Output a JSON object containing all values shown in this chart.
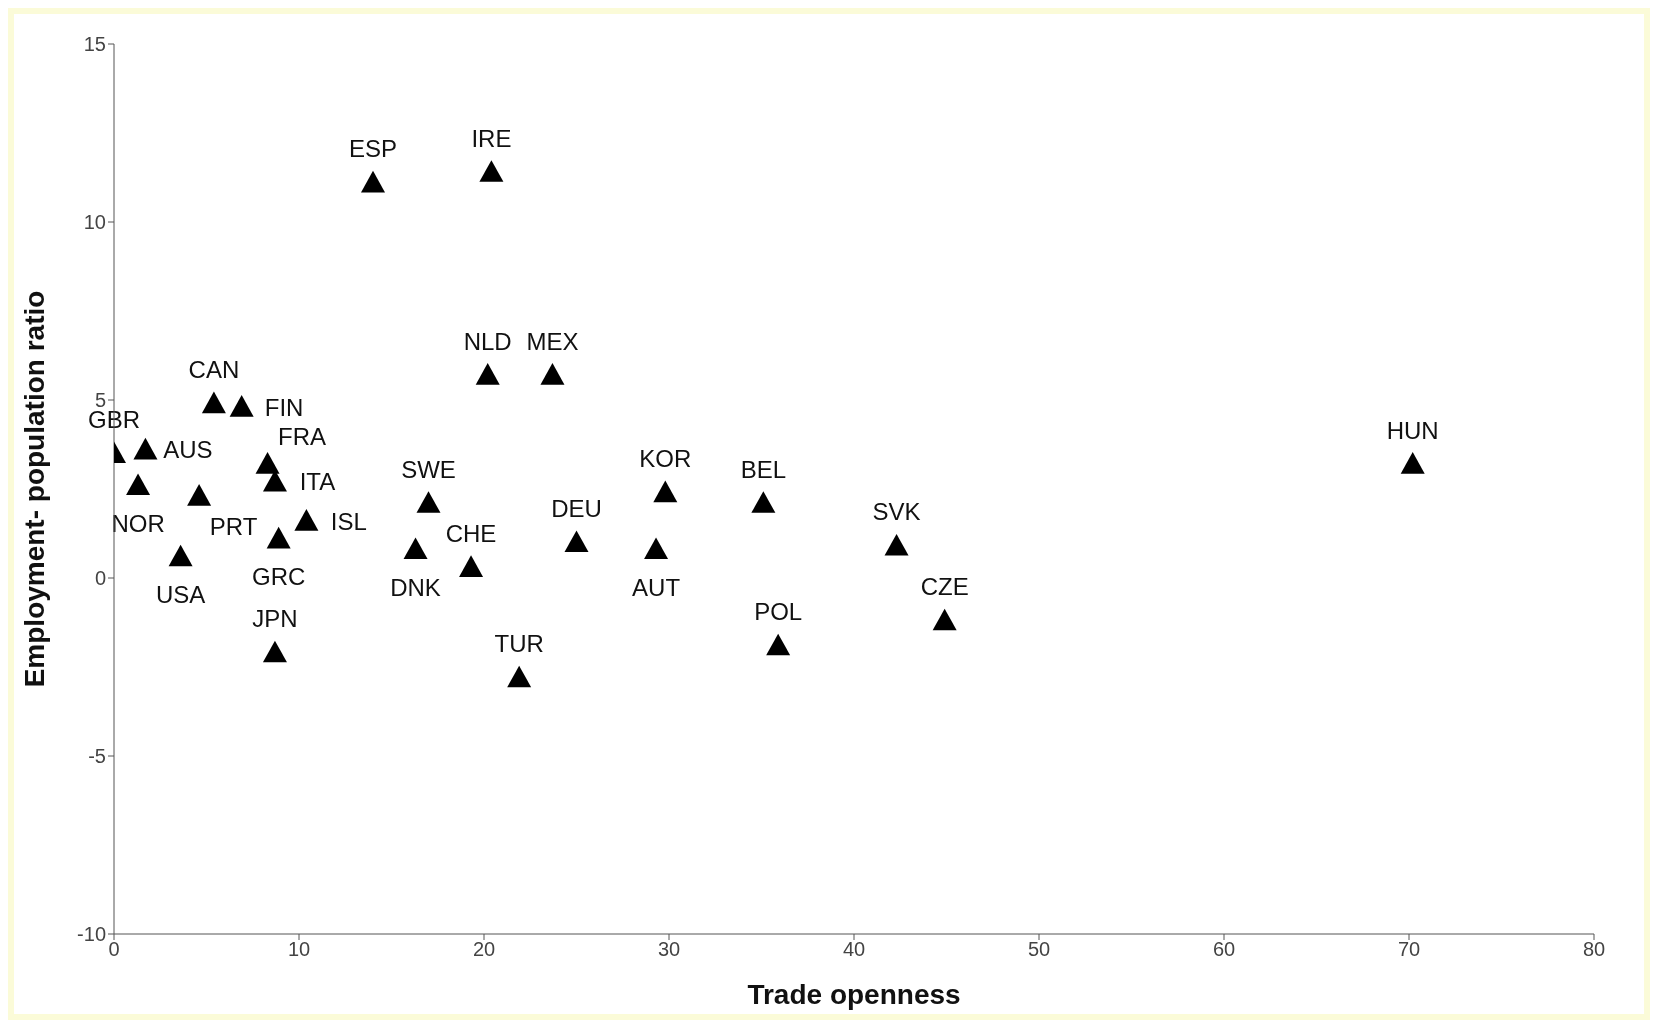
{
  "chart_data": {
    "type": "scatter",
    "xlabel": "Trade openness",
    "ylabel": "Employment- population ratio",
    "xlim": [
      0,
      80
    ],
    "xticks": [
      0,
      10,
      20,
      30,
      40,
      50,
      60,
      70,
      80
    ],
    "ylim": [
      -10,
      15
    ],
    "yticks": [
      -10,
      -5,
      0,
      5,
      10,
      15
    ],
    "grid": false,
    "legend": false,
    "marker": "triangle",
    "series": [
      {
        "color": "#000000",
        "x": [
          0,
          1.7,
          1.3,
          4.6,
          3.6,
          5.4,
          6.9,
          8.3,
          8.7,
          8.9,
          8.7,
          10.4,
          14.0,
          20.4,
          20.2,
          23.7,
          17.0,
          16.3,
          19.3,
          21.9,
          25.0,
          29.3,
          29.8,
          35.1,
          35.9,
          42.3,
          44.9,
          70.2
        ],
        "values": [
          3.5,
          3.6,
          2.6,
          2.3,
          0.6,
          4.9,
          4.8,
          3.2,
          2.7,
          1.1,
          -2.1,
          1.6,
          11.1,
          11.4,
          5.7,
          5.7,
          2.1,
          0.8,
          0.3,
          -2.8,
          1.0,
          0.8,
          2.4,
          2.1,
          -1.9,
          0.9,
          -1.2,
          3.2
        ]
      }
    ],
    "annotations": [
      {
        "text": "GBR",
        "x": 0,
        "y": 3.5
      },
      {
        "text": "AUS",
        "x": 1.7,
        "y": 3.6
      },
      {
        "text": "NOR",
        "x": 1.3,
        "y": 2.6
      },
      {
        "text": "PRT",
        "x": 4.6,
        "y": 2.3
      },
      {
        "text": "USA",
        "x": 3.6,
        "y": 0.6
      },
      {
        "text": "CAN",
        "x": 5.4,
        "y": 4.9
      },
      {
        "text": "FIN",
        "x": 6.9,
        "y": 4.8
      },
      {
        "text": "FRA",
        "x": 8.3,
        "y": 3.2
      },
      {
        "text": "ITA",
        "x": 8.7,
        "y": 2.7
      },
      {
        "text": "GRC",
        "x": 8.9,
        "y": 1.1
      },
      {
        "text": "JPN",
        "x": 8.7,
        "y": -2.1
      },
      {
        "text": "ISL",
        "x": 10.4,
        "y": 1.6
      },
      {
        "text": "ESP",
        "x": 14.0,
        "y": 11.1
      },
      {
        "text": "IRE",
        "x": 20.4,
        "y": 11.4
      },
      {
        "text": "NLD",
        "x": 20.2,
        "y": 5.7
      },
      {
        "text": "MEX",
        "x": 23.7,
        "y": 5.7
      },
      {
        "text": "SWE",
        "x": 17.0,
        "y": 2.1
      },
      {
        "text": "DNK",
        "x": 16.3,
        "y": 0.8
      },
      {
        "text": "CHE",
        "x": 19.3,
        "y": 0.3
      },
      {
        "text": "TUR",
        "x": 21.9,
        "y": -2.8
      },
      {
        "text": "DEU",
        "x": 25.0,
        "y": 1.0
      },
      {
        "text": "AUT",
        "x": 29.3,
        "y": 0.8
      },
      {
        "text": "KOR",
        "x": 29.8,
        "y": 2.4
      },
      {
        "text": "BEL",
        "x": 35.1,
        "y": 2.1
      },
      {
        "text": "POL",
        "x": 35.9,
        "y": -1.9
      },
      {
        "text": "SVK",
        "x": 42.3,
        "y": 0.9
      },
      {
        "text": "CZE",
        "x": 44.9,
        "y": -1.2
      },
      {
        "text": "HUN",
        "x": 70.2,
        "y": 3.2
      }
    ]
  }
}
